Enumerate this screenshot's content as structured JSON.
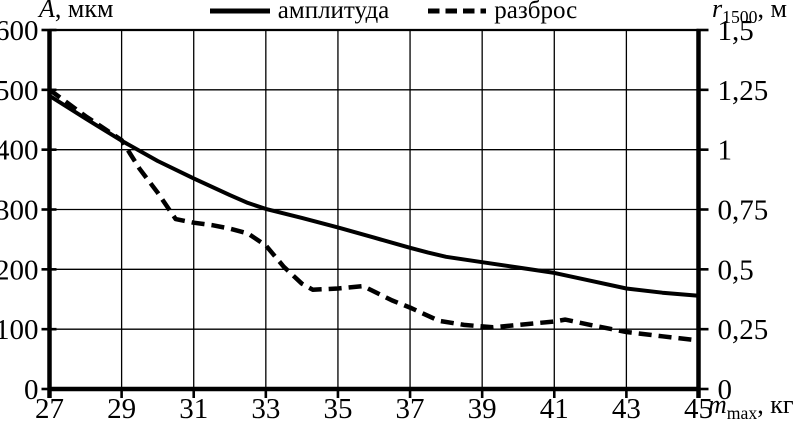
{
  "colors": {
    "line": "#000000",
    "background": "#ffffff",
    "grid": "#000000"
  },
  "chart_data": {
    "type": "line",
    "title": "",
    "grid": true,
    "legend_position": "top",
    "legend": [
      {
        "label": "амплитуда",
        "style": "solid"
      },
      {
        "label": "разброс",
        "style": "dashed"
      }
    ],
    "x_axis": {
      "label_var": "m",
      "label_sub": "max",
      "label_unit": ", кг",
      "min": 27,
      "max": 45,
      "ticks": [
        27,
        29,
        31,
        33,
        35,
        37,
        39,
        41,
        43,
        45
      ]
    },
    "left_axis": {
      "label_var": "A",
      "label_unit": ", мкм",
      "min": 0,
      "max": 600,
      "ticks": [
        600,
        500,
        400,
        300,
        200,
        100,
        0
      ]
    },
    "right_axis": {
      "label_var": "r",
      "label_sub": "1500",
      "label_unit": ", м",
      "min": 0,
      "max": 1.5,
      "ticks": [
        "1,5",
        "1,25",
        "1",
        "0,75",
        "0,5",
        "0,25",
        "0"
      ]
    },
    "series": [
      {
        "name": "амплитуда",
        "axis": "left",
        "style": "solid",
        "points": [
          [
            27,
            490
          ],
          [
            28,
            452
          ],
          [
            29,
            415
          ],
          [
            30,
            381
          ],
          [
            31,
            352
          ],
          [
            32,
            324
          ],
          [
            32.5,
            311
          ],
          [
            33,
            301
          ],
          [
            34,
            286
          ],
          [
            35,
            270
          ],
          [
            36,
            253
          ],
          [
            37,
            236
          ],
          [
            37.5,
            228
          ],
          [
            38,
            221
          ],
          [
            39,
            212
          ],
          [
            40,
            203
          ],
          [
            41,
            194
          ],
          [
            42,
            181
          ],
          [
            43,
            168
          ],
          [
            44,
            161
          ],
          [
            45,
            156
          ]
        ]
      },
      {
        "name": "разброс",
        "axis": "right",
        "style": "dashed",
        "points": [
          [
            27,
            1.25
          ],
          [
            28,
            1.14
          ],
          [
            29,
            1.04
          ],
          [
            29.5,
            0.92
          ],
          [
            30,
            0.82
          ],
          [
            30.5,
            0.71
          ],
          [
            31,
            0.695
          ],
          [
            31.5,
            0.685
          ],
          [
            32,
            0.67
          ],
          [
            32.5,
            0.65
          ],
          [
            33,
            0.6
          ],
          [
            33.5,
            0.51
          ],
          [
            34,
            0.44
          ],
          [
            34.3,
            0.415
          ],
          [
            35,
            0.42
          ],
          [
            35.7,
            0.43
          ],
          [
            36.5,
            0.37
          ],
          [
            37,
            0.34
          ],
          [
            37.8,
            0.285
          ],
          [
            38.5,
            0.268
          ],
          [
            39.3,
            0.258
          ],
          [
            40,
            0.268
          ],
          [
            41,
            0.282
          ],
          [
            41.3,
            0.29
          ],
          [
            42,
            0.268
          ],
          [
            43,
            0.238
          ],
          [
            44,
            0.22
          ],
          [
            45,
            0.203
          ]
        ]
      }
    ]
  }
}
